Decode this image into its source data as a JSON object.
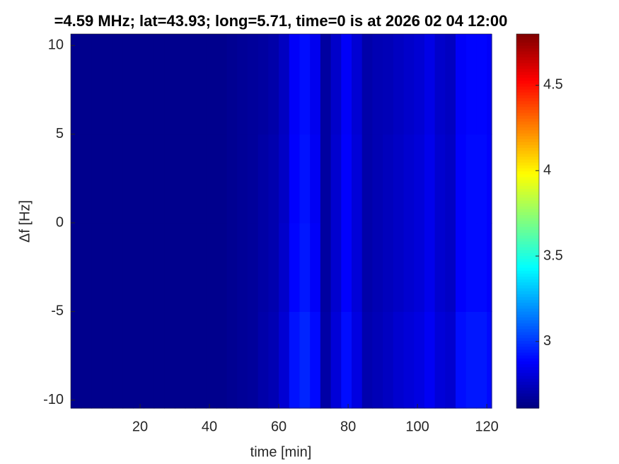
{
  "chart_data": {
    "type": "heatmap",
    "title": "=4.59 MHz;  lat=43.93; long=5.71, time=0 is at 2026 02 04 12:00",
    "x_label": "time [min]",
    "y_label": "Δf [Hz]",
    "colormap": "jet",
    "x_edges": [
      0,
      3,
      6,
      9,
      12,
      15,
      18,
      21,
      24,
      27,
      30,
      33,
      36,
      39,
      42,
      45,
      48,
      51,
      54,
      57,
      60,
      63,
      66,
      69,
      72,
      75,
      78,
      81,
      84,
      87,
      90,
      93,
      96,
      99,
      102,
      105,
      108,
      111,
      114,
      117,
      120,
      121.4
    ],
    "y_edges": [
      -10.45,
      -5,
      0,
      5,
      10.65
    ],
    "z": [
      [
        2.64,
        2.64,
        2.64,
        2.64,
        2.64,
        2.64,
        2.64,
        2.64,
        2.64,
        2.64,
        2.64,
        2.64,
        2.64,
        2.64,
        2.64,
        2.65,
        2.66,
        2.67,
        2.7,
        2.72,
        2.79,
        2.92,
        2.96,
        2.9,
        2.69,
        2.8,
        2.91,
        2.82,
        2.71,
        2.73,
        2.75,
        2.78,
        2.8,
        2.82,
        2.86,
        2.8,
        2.78,
        2.91,
        2.93,
        2.93,
        2.9
      ],
      [
        2.64,
        2.64,
        2.64,
        2.64,
        2.64,
        2.64,
        2.64,
        2.64,
        2.64,
        2.64,
        2.64,
        2.64,
        2.64,
        2.64,
        2.64,
        2.65,
        2.66,
        2.67,
        2.69,
        2.71,
        2.77,
        2.89,
        2.93,
        2.87,
        2.68,
        2.78,
        2.88,
        2.8,
        2.7,
        2.72,
        2.74,
        2.76,
        2.78,
        2.8,
        2.84,
        2.78,
        2.76,
        2.88,
        2.9,
        2.9,
        2.88
      ],
      [
        2.64,
        2.64,
        2.64,
        2.64,
        2.64,
        2.64,
        2.64,
        2.64,
        2.64,
        2.64,
        2.64,
        2.64,
        2.64,
        2.64,
        2.64,
        2.65,
        2.66,
        2.67,
        2.69,
        2.71,
        2.76,
        2.88,
        2.92,
        2.86,
        2.68,
        2.78,
        2.88,
        2.8,
        2.7,
        2.72,
        2.74,
        2.76,
        2.78,
        2.8,
        2.84,
        2.78,
        2.76,
        2.88,
        2.9,
        2.9,
        2.88
      ],
      [
        2.64,
        2.64,
        2.64,
        2.64,
        2.64,
        2.64,
        2.64,
        2.64,
        2.64,
        2.64,
        2.64,
        2.64,
        2.64,
        2.64,
        2.64,
        2.65,
        2.66,
        2.67,
        2.68,
        2.7,
        2.75,
        2.87,
        2.91,
        2.85,
        2.68,
        2.77,
        2.87,
        2.79,
        2.7,
        2.72,
        2.73,
        2.75,
        2.77,
        2.79,
        2.83,
        2.77,
        2.75,
        2.87,
        2.89,
        2.89,
        2.87
      ]
    ],
    "xlim": [
      0,
      121.4
    ],
    "ylim": [
      -10.45,
      10.65
    ],
    "clim": [
      2.61,
      4.8
    ],
    "xticks": [
      20,
      40,
      60,
      80,
      100,
      120
    ],
    "yticks": [
      -10,
      -5,
      0,
      5,
      10
    ],
    "cticks": [
      3,
      3.5,
      4,
      4.5
    ]
  }
}
